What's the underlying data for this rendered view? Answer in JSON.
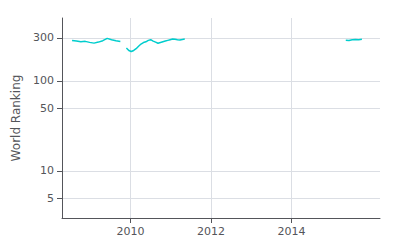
{
  "chart_data": {
    "type": "line",
    "ylabel": "World Ranking",
    "color": "#00CDCD",
    "log": "y",
    "grid": true,
    "xlim": [
      2008.3,
      2016.2
    ],
    "xticks": [
      2010,
      2012,
      2014
    ],
    "ylim": [
      3,
      500
    ],
    "yticks": [
      5,
      10,
      50,
      100,
      300
    ],
    "series": [
      {
        "x": [
          2008.55,
          2008.659091,
          2008.768182,
          2008.877273,
          2008.986364,
          2009.095455,
          2009.204545,
          2009.313636,
          2009.422727,
          2009.531818,
          2009.640909,
          2009.75
        ],
        "values": [
          282,
          278,
          272,
          275,
          268,
          263,
          270,
          280,
          297,
          287,
          279,
          274
        ]
      },
      {
        "x": [
          2009.9,
          2009.960417,
          2010.020833,
          2010.08125,
          2010.141667,
          2010.202083,
          2010.2625,
          2010.322917,
          2010.383333,
          2010.44375,
          2010.504167,
          2010.564583,
          2010.625,
          2010.685417,
          2010.745833,
          2010.80625,
          2010.866667,
          2010.927083,
          2010.9875,
          2011.047917,
          2011.108333,
          2011.16875,
          2011.229167,
          2011.289583,
          2011.35
        ],
        "values": [
          232,
          218,
          212,
          218,
          228,
          243,
          257,
          267,
          272,
          282,
          287,
          277,
          270,
          262,
          267,
          272,
          277,
          282,
          287,
          292,
          290,
          287,
          285,
          289,
          292
        ]
      },
      {
        "x": [
          2015.35,
          2015.43,
          2015.51,
          2015.59,
          2015.67,
          2015.75
        ],
        "values": [
          283,
          281,
          286,
          289,
          286,
          291
        ]
      }
    ]
  }
}
